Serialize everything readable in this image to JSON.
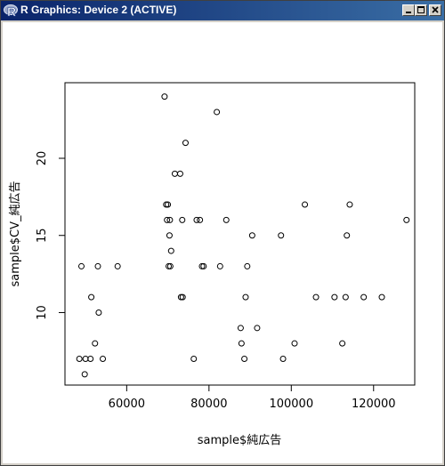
{
  "window": {
    "title": "R Graphics: Device 2 (ACTIVE)",
    "icon": "r-logo-icon",
    "controls": [
      "minimize-icon",
      "maximize-icon",
      "close-icon"
    ],
    "titlebar_color_left": "#0a246a",
    "titlebar_color_right": "#3a6ea5"
  },
  "chart_data": {
    "type": "scatter",
    "xlabel": "sample$純広告",
    "ylabel": "sample$CV_純広告",
    "xlim": [
      45000,
      130000
    ],
    "ylim": [
      5.3,
      24.9
    ],
    "x_ticks": [
      60000,
      80000,
      100000,
      120000
    ],
    "y_ticks": [
      10,
      15,
      20
    ],
    "grid": false,
    "marker": "open-circle",
    "points": [
      {
        "x": 48500,
        "y": 7
      },
      {
        "x": 49000,
        "y": 13
      },
      {
        "x": 49800,
        "y": 6
      },
      {
        "x": 50000,
        "y": 7
      },
      {
        "x": 51200,
        "y": 7
      },
      {
        "x": 51400,
        "y": 11
      },
      {
        "x": 52300,
        "y": 8
      },
      {
        "x": 53000,
        "y": 13
      },
      {
        "x": 53200,
        "y": 10
      },
      {
        "x": 54200,
        "y": 7
      },
      {
        "x": 57800,
        "y": 13
      },
      {
        "x": 69200,
        "y": 24
      },
      {
        "x": 69600,
        "y": 17
      },
      {
        "x": 69800,
        "y": 16
      },
      {
        "x": 70000,
        "y": 17
      },
      {
        "x": 70200,
        "y": 13
      },
      {
        "x": 70400,
        "y": 15
      },
      {
        "x": 70500,
        "y": 16
      },
      {
        "x": 70600,
        "y": 13
      },
      {
        "x": 70800,
        "y": 14
      },
      {
        "x": 71700,
        "y": 19
      },
      {
        "x": 73000,
        "y": 19
      },
      {
        "x": 73200,
        "y": 11
      },
      {
        "x": 73500,
        "y": 16
      },
      {
        "x": 73600,
        "y": 11
      },
      {
        "x": 74300,
        "y": 21
      },
      {
        "x": 76300,
        "y": 7
      },
      {
        "x": 77000,
        "y": 16
      },
      {
        "x": 77800,
        "y": 16
      },
      {
        "x": 78300,
        "y": 13
      },
      {
        "x": 78700,
        "y": 13
      },
      {
        "x": 81900,
        "y": 23
      },
      {
        "x": 82700,
        "y": 13
      },
      {
        "x": 84200,
        "y": 16
      },
      {
        "x": 87700,
        "y": 9
      },
      {
        "x": 87900,
        "y": 8
      },
      {
        "x": 88600,
        "y": 7
      },
      {
        "x": 88900,
        "y": 11
      },
      {
        "x": 89300,
        "y": 13
      },
      {
        "x": 90500,
        "y": 15
      },
      {
        "x": 91700,
        "y": 9
      },
      {
        "x": 97500,
        "y": 15
      },
      {
        "x": 98000,
        "y": 7
      },
      {
        "x": 100800,
        "y": 8
      },
      {
        "x": 103300,
        "y": 17
      },
      {
        "x": 106000,
        "y": 11
      },
      {
        "x": 110500,
        "y": 11
      },
      {
        "x": 112400,
        "y": 8
      },
      {
        "x": 113200,
        "y": 11
      },
      {
        "x": 113500,
        "y": 15
      },
      {
        "x": 114200,
        "y": 17
      },
      {
        "x": 117600,
        "y": 11
      },
      {
        "x": 122000,
        "y": 11
      },
      {
        "x": 128000,
        "y": 16
      }
    ]
  }
}
